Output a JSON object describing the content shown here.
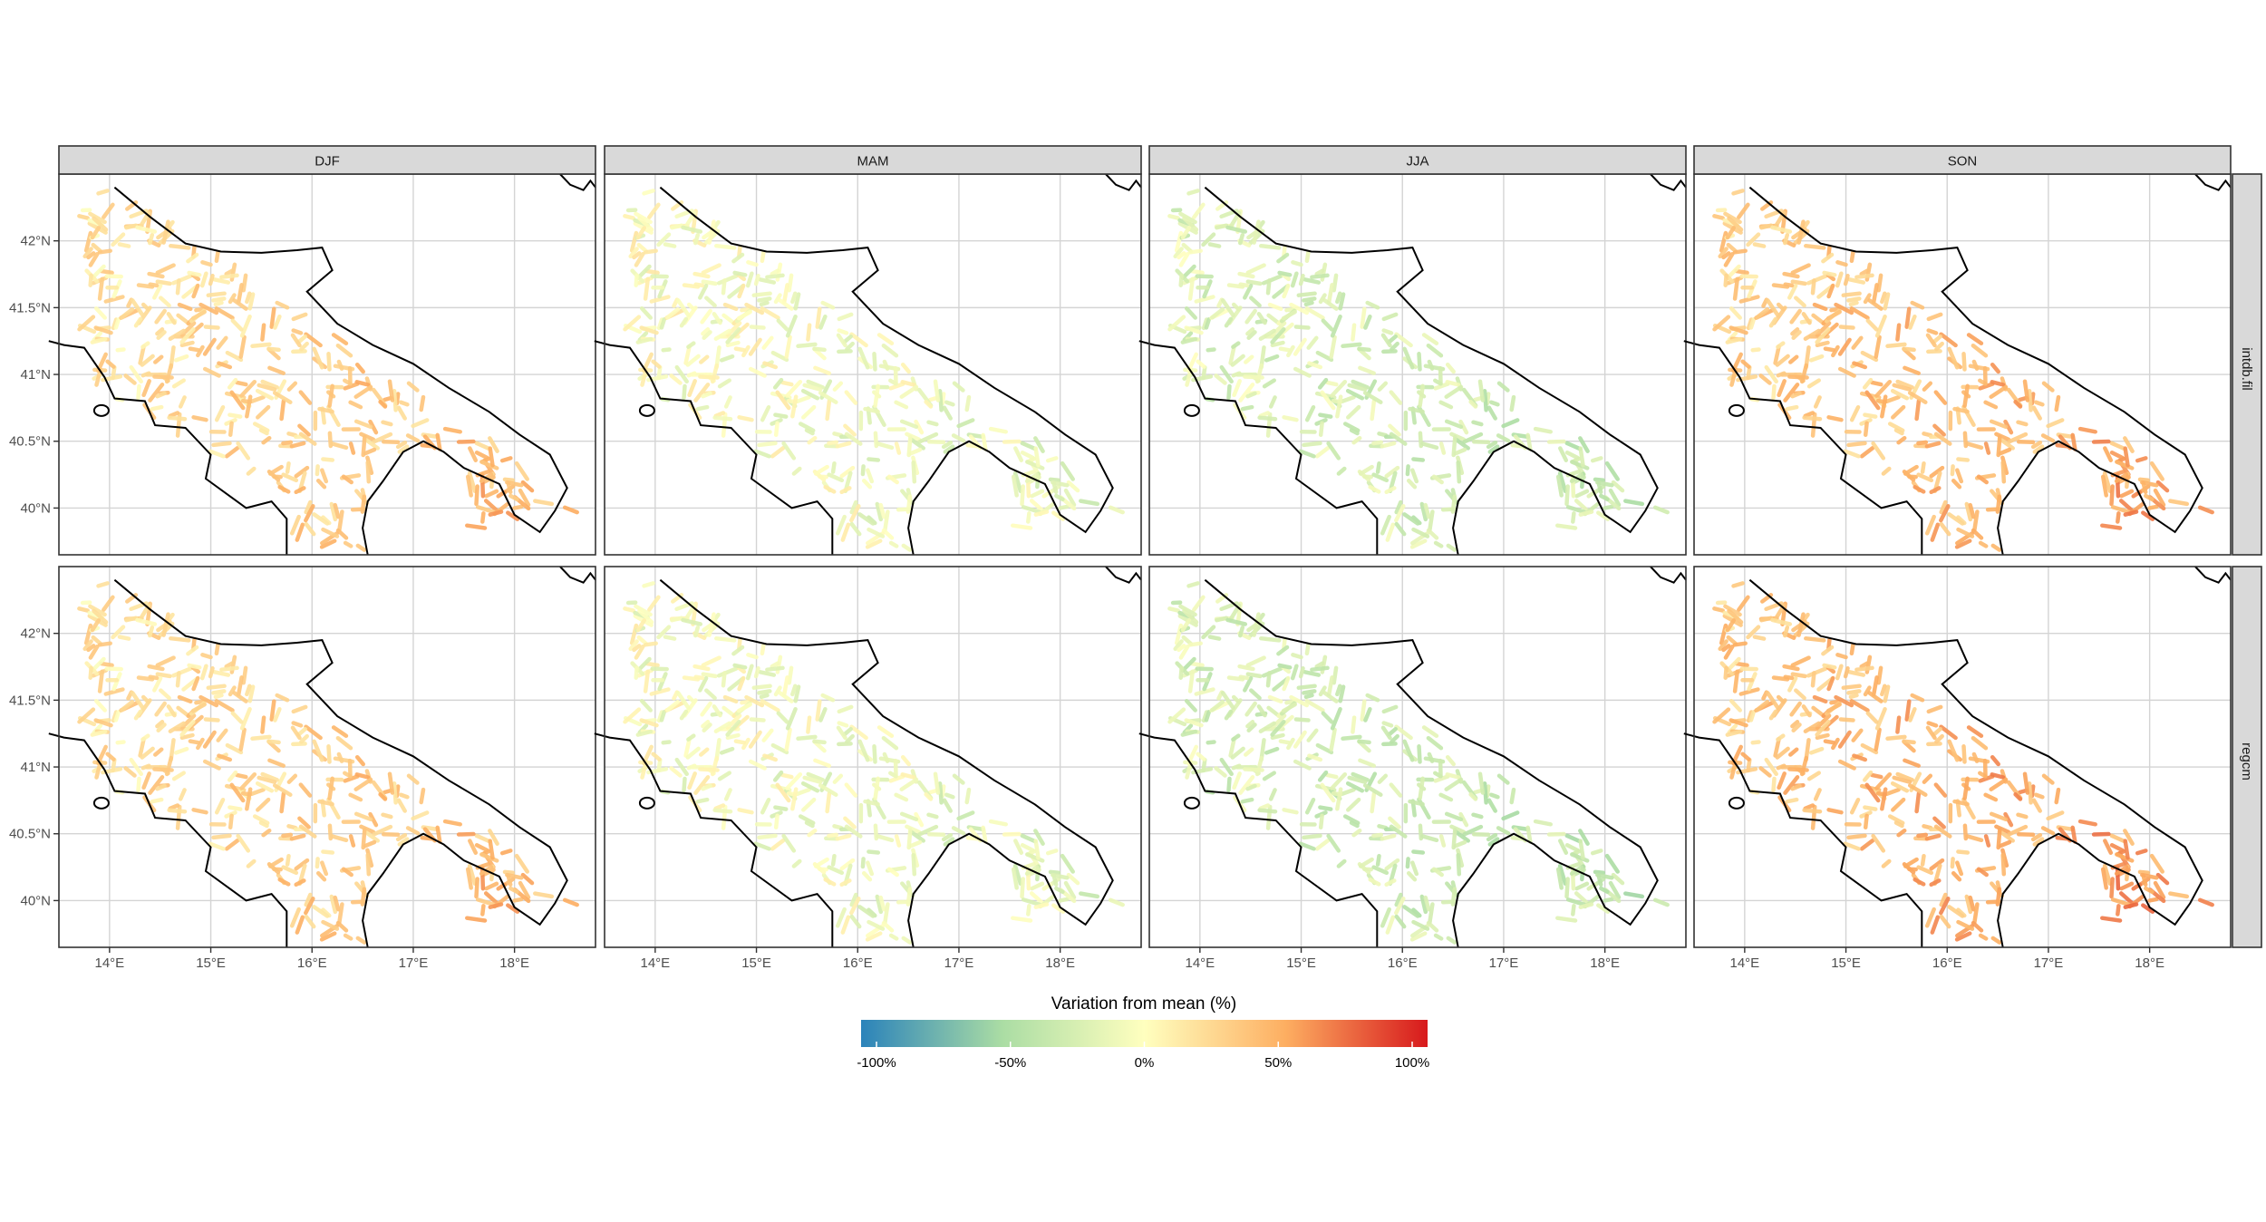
{
  "columns": [
    "DJF",
    "MAM",
    "JJA",
    "SON"
  ],
  "rows": [
    "intdb.fil",
    "regcm"
  ],
  "x_ticks": [
    "14°E",
    "15°E",
    "16°E",
    "17°E",
    "18°E"
  ],
  "y_ticks": [
    "42°N",
    "41.5°N",
    "41°N",
    "40.5°N",
    "40°N"
  ],
  "legend": {
    "title": "Variation from mean (%)",
    "ticks": [
      "-100%",
      "-50%",
      "0%",
      "50%",
      "100%"
    ],
    "colors": [
      "#2b83ba",
      "#abdda4",
      "#ffffbf",
      "#fdae61",
      "#d7191c"
    ]
  },
  "chart_data": {
    "type": "heatmap",
    "title": "",
    "facets": {
      "columns": [
        "DJF",
        "MAM",
        "JJA",
        "SON"
      ],
      "rows": [
        "intdb.fil",
        "regcm"
      ]
    },
    "xlim": [
      13.5,
      18.8
    ],
    "ylim": [
      39.65,
      42.5
    ],
    "color_scale": {
      "variable": "Variation from mean (%)",
      "range": [
        -100,
        100
      ],
      "colors": [
        "#2b83ba",
        "#abdda4",
        "#ffffbf",
        "#fdae61",
        "#d7191c"
      ]
    },
    "typical_variation_pct": {
      "intdb.fil": {
        "DJF": 30,
        "MAM": -8,
        "JJA": -25,
        "SON": 40
      },
      "regcm": {
        "DJF": 30,
        "MAM": -10,
        "JJA": -28,
        "SON": 45
      }
    },
    "grid": true
  }
}
